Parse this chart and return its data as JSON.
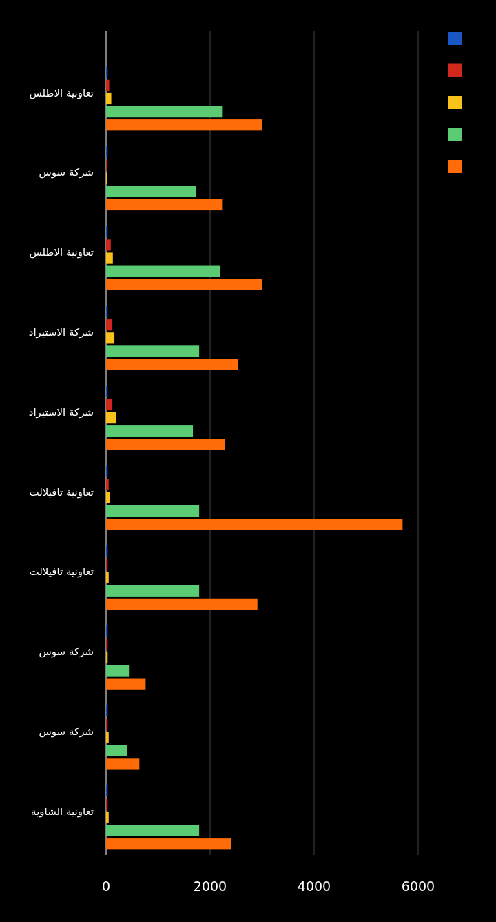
{
  "chart_data": {
    "type": "bar",
    "orientation": "horizontal",
    "categories": [
      "تعاونية الاطلس",
      "شركة سوس",
      "تعاونية الاطلس",
      "شركة الاستيراد",
      "شركة الاستيراد",
      "تعاونية تافيلالت",
      "تعاونية تافيلالت",
      "شركة سوس",
      "شركة سوس",
      "تعاونية الشاوية"
    ],
    "series": [
      {
        "color": "#1a56c4",
        "values": [
          30,
          30,
          30,
          30,
          30,
          30,
          30,
          30,
          30,
          30
        ]
      },
      {
        "color": "#d0281c",
        "values": [
          60,
          20,
          90,
          120,
          120,
          50,
          30,
          30,
          30,
          30
        ]
      },
      {
        "color": "#f9c21a",
        "values": [
          100,
          20,
          130,
          160,
          190,
          70,
          50,
          30,
          50,
          50
        ]
      },
      {
        "color": "#5ccc74",
        "values": [
          2230,
          1730,
          2190,
          1790,
          1670,
          1790,
          1790,
          440,
          400,
          1790
        ]
      },
      {
        "color": "#ff6d0a",
        "values": [
          3000,
          2230,
          3000,
          2540,
          2280,
          5700,
          2910,
          760,
          640,
          2400
        ]
      }
    ],
    "xlim": [
      0,
      6000
    ],
    "xticks": [
      0,
      2000,
      4000,
      6000
    ],
    "grid": "x"
  }
}
